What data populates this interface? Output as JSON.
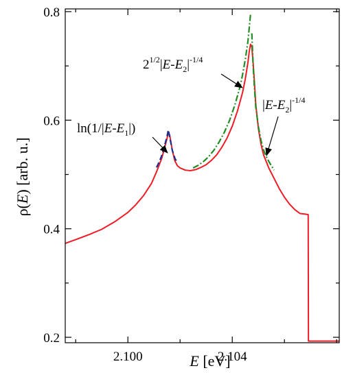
{
  "chart_data": {
    "type": "line",
    "title": "",
    "xlabel_var": "E",
    "xlabel_unit": "[eV]",
    "ylabel_fn": "ρ(",
    "ylabel_var": "E",
    "ylabel_unit": ") [arb. u.]",
    "xlim": [
      2.0976,
      2.1081
    ],
    "ylim": [
      0.19,
      0.805
    ],
    "xticks": [
      {
        "value": 2.1,
        "label": "2.100"
      },
      {
        "value": 2.104,
        "label": "2.104"
      }
    ],
    "xticks_minor": [
      2.098,
      2.102,
      2.106,
      2.108
    ],
    "yticks": [
      {
        "value": 0.2,
        "label": "0.2"
      },
      {
        "value": 0.4,
        "label": "0.4"
      },
      {
        "value": 0.6,
        "label": "0.6"
      },
      {
        "value": 0.8,
        "label": "0.8"
      }
    ],
    "yticks_minor": [
      0.3,
      0.5,
      0.7
    ],
    "grid": false,
    "series": [
      {
        "style": "solid",
        "color": "#ee1c25",
        "points": [
          [
            2.0976,
            0.373
          ],
          [
            2.098,
            0.38
          ],
          [
            2.0985,
            0.389
          ],
          [
            2.099,
            0.399
          ],
          [
            2.0995,
            0.413
          ],
          [
            2.1,
            0.43
          ],
          [
            2.1003,
            0.444
          ],
          [
            2.1006,
            0.461
          ],
          [
            2.1009,
            0.483
          ],
          [
            2.1011,
            0.505
          ],
          [
            2.1013,
            0.53
          ],
          [
            2.1014,
            0.548
          ],
          [
            2.1015,
            0.566
          ],
          [
            2.10155,
            0.577
          ],
          [
            2.1016,
            0.573
          ],
          [
            2.10165,
            0.56
          ],
          [
            2.1017,
            0.545
          ],
          [
            2.1018,
            0.525
          ],
          [
            2.1019,
            0.516
          ],
          [
            2.102,
            0.512
          ],
          [
            2.1022,
            0.508
          ],
          [
            2.1024,
            0.507
          ],
          [
            2.1026,
            0.509
          ],
          [
            2.1028,
            0.513
          ],
          [
            2.103,
            0.518
          ],
          [
            2.1032,
            0.526
          ],
          [
            2.1034,
            0.536
          ],
          [
            2.1036,
            0.55
          ],
          [
            2.1038,
            0.567
          ],
          [
            2.104,
            0.589
          ],
          [
            2.1042,
            0.617
          ],
          [
            2.1044,
            0.652
          ],
          [
            2.1045,
            0.676
          ],
          [
            2.1046,
            0.706
          ],
          [
            2.10465,
            0.726
          ],
          [
            2.1047,
            0.74
          ],
          [
            2.10475,
            0.735
          ],
          [
            2.1048,
            0.705
          ],
          [
            2.10485,
            0.67
          ],
          [
            2.1049,
            0.63
          ],
          [
            2.105,
            0.585
          ],
          [
            2.1051,
            0.556
          ],
          [
            2.1052,
            0.536
          ],
          [
            2.1054,
            0.512
          ],
          [
            2.1056,
            0.493
          ],
          [
            2.1058,
            0.474
          ],
          [
            2.106,
            0.458
          ],
          [
            2.1062,
            0.445
          ],
          [
            2.1064,
            0.435
          ],
          [
            2.1066,
            0.428
          ],
          [
            2.1068,
            0.427
          ],
          [
            2.10691,
            0.426
          ],
          [
            2.10692,
            0.193
          ],
          [
            2.1081,
            0.193
          ]
        ]
      },
      {
        "style": "dashed",
        "color": "#1f2f8f",
        "points": [
          [
            2.1011,
            0.513
          ],
          [
            2.1012,
            0.523
          ],
          [
            2.1013,
            0.535
          ],
          [
            2.1014,
            0.552
          ],
          [
            2.1015,
            0.57
          ],
          [
            2.10155,
            0.582
          ],
          [
            2.1016,
            0.57
          ],
          [
            2.1017,
            0.545
          ],
          [
            2.1018,
            0.53
          ],
          [
            2.1019,
            0.521
          ]
        ]
      },
      {
        "style": "dashdot",
        "color": "#228b22",
        "points": [
          [
            2.1025,
            0.512
          ],
          [
            2.1027,
            0.517
          ],
          [
            2.1029,
            0.524
          ],
          [
            2.1031,
            0.533
          ],
          [
            2.1033,
            0.545
          ],
          [
            2.1035,
            0.56
          ],
          [
            2.1037,
            0.578
          ],
          [
            2.1039,
            0.6
          ],
          [
            2.1041,
            0.628
          ],
          [
            2.1043,
            0.662
          ],
          [
            2.1044,
            0.685
          ],
          [
            2.1045,
            0.712
          ],
          [
            2.1046,
            0.745
          ],
          [
            2.10465,
            0.77
          ],
          [
            2.1047,
            0.795
          ]
        ]
      },
      {
        "style": "dashdot",
        "color": "#228b22",
        "points": [
          [
            2.10475,
            0.76
          ],
          [
            2.1048,
            0.7
          ],
          [
            2.10485,
            0.66
          ],
          [
            2.1049,
            0.625
          ],
          [
            2.105,
            0.588
          ],
          [
            2.1051,
            0.563
          ],
          [
            2.1052,
            0.545
          ],
          [
            2.1053,
            0.533
          ],
          [
            2.1054,
            0.524
          ],
          [
            2.1055,
            0.516
          ],
          [
            2.1056,
            0.508
          ]
        ]
      }
    ],
    "annotations": [
      {
        "id": "ann1",
        "prefix": "ln(1/|",
        "var": "E",
        "mid": "-",
        "var2": "E",
        "sub": "1",
        "suffix": "|)"
      },
      {
        "id": "ann2",
        "coef": "2",
        "coef_sup": "1/2",
        "open": "|",
        "var": "E",
        "mid": "-",
        "var2": "E",
        "sub": "2",
        "close": "|",
        "exp": "-1/4"
      },
      {
        "id": "ann3",
        "open": "|",
        "var": "E",
        "mid": "-",
        "var2": "E",
        "sub": "2",
        "close": "|",
        "exp": "-1/4"
      }
    ]
  }
}
